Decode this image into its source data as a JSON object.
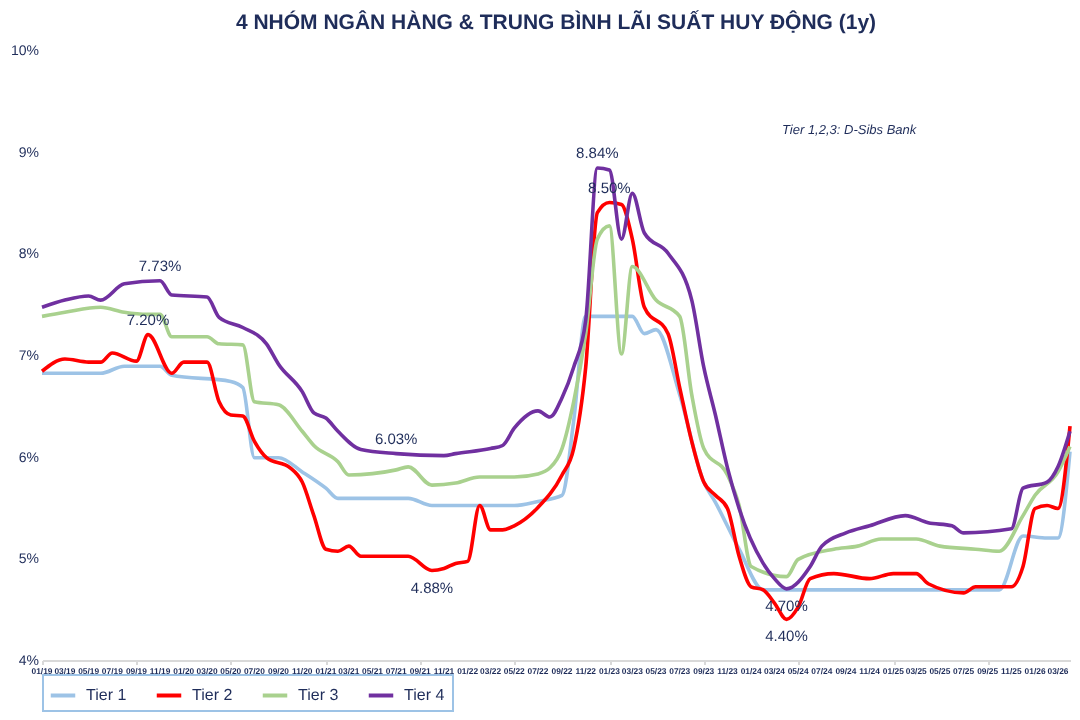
{
  "chart_data": {
    "type": "line",
    "title": "4 NHÓM NGÂN HÀNG & TRUNG BÌNH LÃI SUẤT HUY ĐỘNG (1y)",
    "xlim": [
      "2019-01",
      "2026-04"
    ],
    "ylim": [
      4,
      10
    ],
    "yticks": [
      {
        "value": 4,
        "label": "4%"
      },
      {
        "value": 5,
        "label": "5%"
      },
      {
        "value": 6,
        "label": "6%"
      },
      {
        "value": 7,
        "label": "7%"
      },
      {
        "value": 8,
        "label": "8%"
      },
      {
        "value": 9,
        "label": "9%"
      },
      {
        "value": 10,
        "label": "10%"
      }
    ],
    "xticks": [
      {
        "value": "2019-01",
        "label": "01/19"
      },
      {
        "value": "2019-03",
        "label": "03/19"
      },
      {
        "value": "2019-05",
        "label": "05/19"
      },
      {
        "value": "2019-07",
        "label": "07/19"
      },
      {
        "value": "2019-09",
        "label": "09/19"
      },
      {
        "value": "2019-11",
        "label": "11/19"
      },
      {
        "value": "2020-01",
        "label": "01/20"
      },
      {
        "value": "2020-03",
        "label": "03/20"
      },
      {
        "value": "2020-05",
        "label": "05/20"
      },
      {
        "value": "2020-07",
        "label": "07/20"
      },
      {
        "value": "2020-09",
        "label": "09/20"
      },
      {
        "value": "2020-11",
        "label": "11/20"
      },
      {
        "value": "2021-01",
        "label": "01/21"
      },
      {
        "value": "2021-03",
        "label": "03/21"
      },
      {
        "value": "2021-05",
        "label": "05/21"
      },
      {
        "value": "2021-07",
        "label": "07/21"
      },
      {
        "value": "2021-09",
        "label": "09/21"
      },
      {
        "value": "2021-11",
        "label": "11/21"
      },
      {
        "value": "2022-01",
        "label": "01/22"
      },
      {
        "value": "2022-03",
        "label": "03/22"
      },
      {
        "value": "2022-05",
        "label": "05/22"
      },
      {
        "value": "2022-07",
        "label": "07/22"
      },
      {
        "value": "2022-09",
        "label": "09/22"
      },
      {
        "value": "2022-11",
        "label": "11/22"
      },
      {
        "value": "2023-01",
        "label": "01/23"
      },
      {
        "value": "2023-03",
        "label": "03/23"
      },
      {
        "value": "2023-05",
        "label": "05/23"
      },
      {
        "value": "2023-07",
        "label": "07/23"
      },
      {
        "value": "2023-09",
        "label": "09/23"
      },
      {
        "value": "2023-11",
        "label": "11/23"
      },
      {
        "value": "2024-01",
        "label": "01/24"
      },
      {
        "value": "2024-03",
        "label": "03/24"
      },
      {
        "value": "2024-05",
        "label": "05/24"
      },
      {
        "value": "2024-07",
        "label": "07/24"
      },
      {
        "value": "2024-09",
        "label": "09/24"
      },
      {
        "value": "2024-11",
        "label": "11/24"
      },
      {
        "value": "2025-01",
        "label": "01/25"
      },
      {
        "value": "2025-03",
        "label": "03/25"
      },
      {
        "value": "2025-05",
        "label": "05/25"
      },
      {
        "value": "2025-07",
        "label": "07/25"
      },
      {
        "value": "2025-09",
        "label": "09/25"
      },
      {
        "value": "2025-11",
        "label": "11/25"
      },
      {
        "value": "2026-01",
        "label": "01/26"
      },
      {
        "value": "2026-03",
        "label": "03/26"
      }
    ],
    "grid": false,
    "legend": "bottom",
    "line_style": "solid",
    "marker": "none",
    "annotations": [
      {
        "text": "7.73%",
        "x": "2019-11",
        "y": 7.73
      },
      {
        "text": "7.20%",
        "x": "2019-10",
        "y": 7.2
      },
      {
        "text": "6.03%",
        "x": "2021-07",
        "y": 6.03
      },
      {
        "text": "4.88%",
        "x": "2021-10",
        "y": 4.88
      },
      {
        "text": "8.84%",
        "x": "2022-12",
        "y": 8.84
      },
      {
        "text": "8.50%",
        "x": "2023-01",
        "y": 8.5
      },
      {
        "text": "4.70%",
        "x": "2024-04",
        "y": 4.7
      },
      {
        "text": "4.40%",
        "x": "2024-04",
        "y": 4.4
      },
      "Tier 1,2,3: D-Sibs Bank"
    ],
    "series": [
      {
        "name": "Tier 1",
        "color": "#9dc3e6",
        "x": [
          "2019-01",
          "2019-06",
          "2019-08",
          "2019-11",
          "2019-12",
          "2020-05",
          "2020-06",
          "2020-07",
          "2020-09",
          "2020-11",
          "2021-01",
          "2021-02",
          "2021-08",
          "2021-10",
          "2022-05",
          "2022-07",
          "2022-09",
          "2022-10",
          "2022-11",
          "2023-03",
          "2023-04",
          "2023-05",
          "2023-07",
          "2023-09",
          "2023-10",
          "2023-12",
          "2024-02",
          "2025-10",
          "2025-12",
          "2026-02",
          "2026-03",
          "2026-04"
        ],
        "values": [
          6.82,
          6.82,
          6.89,
          6.89,
          6.8,
          6.74,
          6.68,
          5.99,
          5.99,
          5.85,
          5.69,
          5.59,
          5.59,
          5.52,
          5.52,
          5.56,
          5.62,
          6.35,
          7.38,
          7.38,
          7.21,
          7.25,
          6.61,
          5.75,
          5.55,
          5.09,
          4.69,
          4.69,
          5.22,
          5.2,
          5.2,
          6.05
        ]
      },
      {
        "name": "Tier 2",
        "color": "#ff0000",
        "x": [
          "2019-01",
          "2019-03",
          "2019-05",
          "2019-06",
          "2019-07",
          "2019-09",
          "2019-10",
          "2019-12",
          "2020-01",
          "2020-03",
          "2020-04",
          "2020-05",
          "2020-06",
          "2020-07",
          "2020-08",
          "2020-10",
          "2020-11",
          "2020-12",
          "2021-01",
          "2021-02",
          "2021-03",
          "2021-04",
          "2021-08",
          "2021-10",
          "2021-11",
          "2021-12",
          "2022-01",
          "2022-02",
          "2022-03",
          "2022-04",
          "2022-05",
          "2022-07",
          "2022-09",
          "2022-10",
          "2022-11",
          "2022-12",
          "2023-01",
          "2023-02",
          "2023-03",
          "2023-04",
          "2023-06",
          "2023-07",
          "2023-08",
          "2023-09",
          "2023-10",
          "2023-11",
          "2023-12",
          "2024-01",
          "2024-02",
          "2024-03",
          "2024-04",
          "2024-05",
          "2024-06",
          "2024-08",
          "2024-11",
          "2025-01",
          "2025-03",
          "2025-04",
          "2025-07",
          "2025-08",
          "2025-11",
          "2025-12",
          "2026-01",
          "2026-02",
          "2026-03",
          "2026-04"
        ],
        "values": [
          6.84,
          6.96,
          6.93,
          6.93,
          7.02,
          6.94,
          7.2,
          6.82,
          6.93,
          6.93,
          6.54,
          6.41,
          6.4,
          6.15,
          5.99,
          5.89,
          5.75,
          5.42,
          5.09,
          5.07,
          5.12,
          5.02,
          5.02,
          4.88,
          4.9,
          4.95,
          4.97,
          5.52,
          5.28,
          5.28,
          5.32,
          5.5,
          5.82,
          6.08,
          6.88,
          8.4,
          8.5,
          8.48,
          8.14,
          7.47,
          7.21,
          6.68,
          6.15,
          5.75,
          5.62,
          5.49,
          5.02,
          4.72,
          4.69,
          4.56,
          4.4,
          4.52,
          4.8,
          4.85,
          4.8,
          4.85,
          4.85,
          4.75,
          4.66,
          4.72,
          4.72,
          4.92,
          5.49,
          5.52,
          5.49,
          6.3
        ]
      },
      {
        "name": "Tier 3",
        "color": "#a9d18e",
        "x": [
          "2019-01",
          "2019-03",
          "2019-06",
          "2019-08",
          "2019-10",
          "2019-11",
          "2019-12",
          "2020-03",
          "2020-04",
          "2020-06",
          "2020-07",
          "2020-09",
          "2020-11",
          "2020-12",
          "2021-02",
          "2021-03",
          "2021-07",
          "2021-08",
          "2021-10",
          "2021-12",
          "2022-02",
          "2022-05",
          "2022-07",
          "2022-08",
          "2022-09",
          "2022-10",
          "2022-11",
          "2022-12",
          "2023-01",
          "2023-02",
          "2023-03",
          "2023-05",
          "2023-07",
          "2023-08",
          "2023-09",
          "2023-11",
          "2023-12",
          "2024-01",
          "2024-04",
          "2024-05",
          "2024-08",
          "2024-10",
          "2024-12",
          "2025-03",
          "2025-05",
          "2025-08",
          "2025-10",
          "2025-12",
          "2026-01",
          "2026-03",
          "2026-04"
        ],
        "values": [
          7.38,
          7.42,
          7.47,
          7.42,
          7.4,
          7.4,
          7.18,
          7.18,
          7.11,
          7.1,
          6.54,
          6.51,
          6.25,
          6.11,
          5.95,
          5.82,
          5.87,
          5.9,
          5.72,
          5.74,
          5.8,
          5.8,
          5.83,
          5.89,
          6.08,
          6.54,
          7.21,
          8.14,
          8.27,
          7.01,
          7.87,
          7.54,
          7.38,
          6.61,
          6.08,
          5.82,
          5.52,
          4.92,
          4.82,
          4.99,
          5.09,
          5.12,
          5.19,
          5.19,
          5.12,
          5.09,
          5.07,
          5.42,
          5.62,
          5.85,
          6.1
        ]
      },
      {
        "name": "Tier 4",
        "color": "#7030a0",
        "x": [
          "2019-01",
          "2019-03",
          "2019-05",
          "2019-06",
          "2019-08",
          "2019-11",
          "2019-12",
          "2020-03",
          "2020-04",
          "2020-06",
          "2020-08",
          "2020-09",
          "2020-11",
          "2020-12",
          "2021-01",
          "2021-02",
          "2021-04",
          "2021-07",
          "2021-11",
          "2021-12",
          "2022-03",
          "2022-04",
          "2022-05",
          "2022-07",
          "2022-08",
          "2022-09",
          "2022-10",
          "2022-11",
          "2022-12",
          "2023-01",
          "2023-02",
          "2023-03",
          "2023-04",
          "2023-06",
          "2023-08",
          "2023-09",
          "2023-10",
          "2023-11",
          "2023-12",
          "2024-02",
          "2024-03",
          "2024-04",
          "2024-06",
          "2024-07",
          "2024-09",
          "2024-11",
          "2025-02",
          "2025-04",
          "2025-06",
          "2025-07",
          "2025-11",
          "2025-12",
          "2026-02",
          "2026-03",
          "2026-04"
        ],
        "values": [
          7.47,
          7.54,
          7.58,
          7.54,
          7.7,
          7.73,
          7.59,
          7.57,
          7.37,
          7.27,
          7.11,
          6.91,
          6.64,
          6.43,
          6.38,
          6.25,
          6.07,
          6.03,
          6.01,
          6.03,
          6.08,
          6.11,
          6.28,
          6.45,
          6.39,
          6.58,
          6.88,
          7.34,
          8.84,
          8.82,
          8.14,
          8.59,
          8.2,
          8.0,
          7.54,
          6.88,
          6.41,
          5.89,
          5.49,
          4.95,
          4.8,
          4.7,
          4.92,
          5.12,
          5.25,
          5.32,
          5.42,
          5.35,
          5.32,
          5.25,
          5.29,
          5.69,
          5.75,
          5.9,
          6.25
        ]
      }
    ]
  }
}
